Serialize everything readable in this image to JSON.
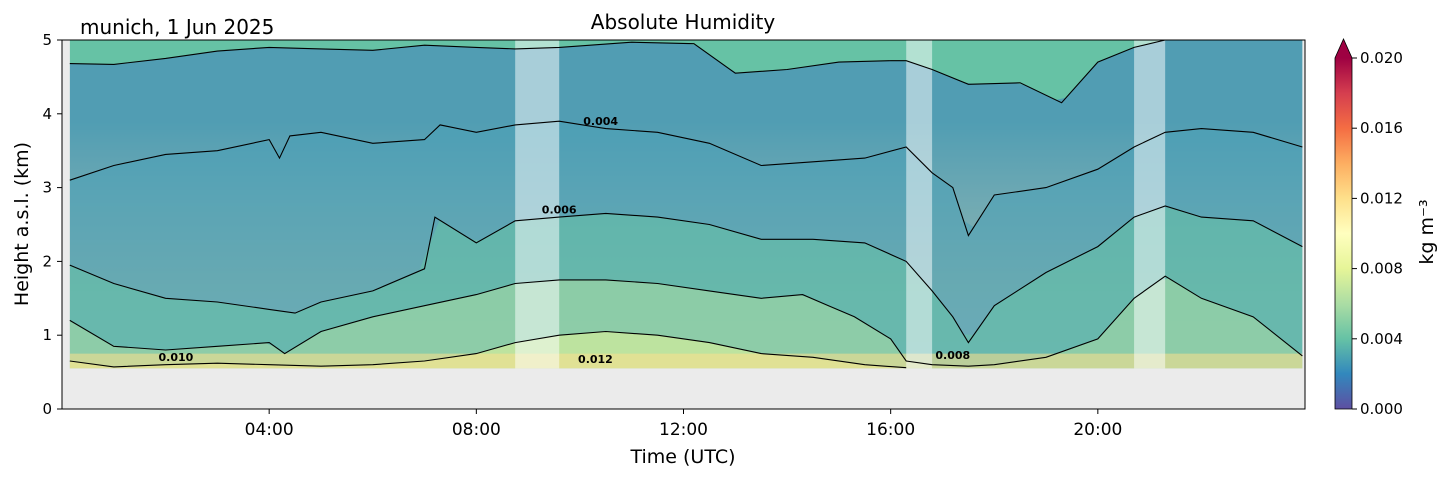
{
  "chart_data": {
    "type": "contour",
    "title": "Absolute Humidity",
    "subtitle": "munich, 1 Jun 2025",
    "xlabel": "Time (UTC)",
    "ylabel": "Height a.s.l. (km)",
    "x_ticks": [
      "04:00",
      "08:00",
      "12:00",
      "16:00",
      "20:00"
    ],
    "x_tick_hours": [
      4,
      8,
      12,
      16,
      20
    ],
    "xlim_hours": [
      0,
      24
    ],
    "y_ticks": [
      "0",
      "1",
      "2",
      "3",
      "4",
      "5"
    ],
    "ylim": [
      0,
      5
    ],
    "data_start_hours": 0.15,
    "data_end_hours": 23.95,
    "ground_height_km": 0.55,
    "colorbar": {
      "label": "kg m⁻³",
      "ticks": [
        "0.000",
        "0.004",
        "0.008",
        "0.012",
        "0.016",
        "0.020"
      ],
      "range": [
        0,
        0.02
      ],
      "extend": "max",
      "colormap": "Spectral_r",
      "stops": [
        "#5e4fa2",
        "#3288bd",
        "#66c2a5",
        "#abdda4",
        "#e6f598",
        "#ffffbf",
        "#fee08b",
        "#fdae61",
        "#f46d43",
        "#d53e4f",
        "#9e0142"
      ]
    },
    "gaps_hours": [
      [
        8.75,
        9.6
      ],
      [
        16.3,
        16.8
      ],
      [
        20.7,
        21.3
      ]
    ],
    "contour_levels": [
      0.002,
      0.004,
      0.006,
      0.008,
      0.01,
      0.012
    ],
    "contour_labels": [
      {
        "text": "0.004",
        "x_hours": 10.4,
        "height_km": 3.85
      },
      {
        "text": "0.006",
        "x_hours": 9.6,
        "height_km": 2.65
      },
      {
        "text": "0.010",
        "x_hours": 2.2,
        "height_km": 0.65
      },
      {
        "text": "0.012",
        "x_hours": 10.3,
        "height_km": 0.62
      },
      {
        "text": "0.008",
        "x_hours": 17.2,
        "height_km": 0.68
      }
    ],
    "contour_lines": [
      {
        "level": 0.002,
        "x_hours": [
          0.15,
          1,
          2,
          3,
          4,
          5,
          6,
          7,
          8,
          8.75,
          9.6,
          11,
          12.2,
          13,
          14,
          15,
          16,
          16.3,
          16.8,
          17.5,
          18.5,
          19.3,
          20,
          20.7,
          21.3,
          22,
          23,
          23.95
        ],
        "height_km": [
          4.68,
          4.67,
          4.75,
          4.85,
          4.9,
          4.88,
          4.86,
          4.93,
          4.9,
          4.88,
          4.9,
          4.97,
          4.95,
          4.55,
          4.6,
          4.7,
          4.72,
          4.72,
          4.6,
          4.4,
          4.42,
          4.15,
          4.7,
          4.9,
          5.0,
          5.0,
          5.0,
          5.0
        ]
      },
      {
        "level": 0.004,
        "x_hours": [
          0.15,
          1,
          2,
          3,
          4,
          4.2,
          4.4,
          5,
          6,
          7,
          7.3,
          8,
          8.75,
          9.6,
          10.5,
          11.5,
          12.5,
          13.5,
          14.5,
          15.5,
          16.3,
          16.8,
          17.2,
          17.5,
          18,
          19,
          20,
          20.7,
          21.3,
          22,
          23,
          23.95
        ],
        "height_km": [
          3.1,
          3.3,
          3.45,
          3.5,
          3.65,
          3.4,
          3.7,
          3.75,
          3.6,
          3.65,
          3.85,
          3.75,
          3.85,
          3.9,
          3.8,
          3.75,
          3.6,
          3.3,
          3.35,
          3.4,
          3.55,
          3.2,
          3.0,
          2.35,
          2.9,
          3.0,
          3.25,
          3.55,
          3.75,
          3.8,
          3.75,
          3.55
        ]
      },
      {
        "level": 0.006,
        "x_hours": [
          0.15,
          1,
          2,
          3,
          4,
          4.5,
          5,
          6,
          7,
          7.2,
          8,
          8.75,
          9.6,
          10.5,
          11.5,
          12.5,
          13.5,
          14.5,
          15.5,
          16.3,
          16.8,
          17.2,
          17.5,
          18,
          19,
          20,
          20.7,
          21.3,
          22,
          23,
          23.95
        ],
        "height_km": [
          1.95,
          1.7,
          1.5,
          1.45,
          1.35,
          1.3,
          1.45,
          1.6,
          1.9,
          2.6,
          2.25,
          2.55,
          2.6,
          2.65,
          2.6,
          2.5,
          2.3,
          2.3,
          2.25,
          2.0,
          1.6,
          1.25,
          0.9,
          1.4,
          1.85,
          2.2,
          2.6,
          2.75,
          2.6,
          2.55,
          2.2
        ]
      },
      {
        "level": 0.008,
        "x_hours": [
          0.15,
          1,
          2,
          3,
          4,
          4.3,
          5,
          6,
          7,
          8,
          8.75,
          9.6,
          10.5,
          11.5,
          12.5,
          13.5,
          14.3,
          14.8,
          15.3,
          16,
          16.3,
          16.8,
          17.5,
          18,
          19,
          20,
          20.7,
          21.3,
          22,
          23,
          23.95
        ],
        "height_km": [
          1.2,
          0.85,
          0.8,
          0.85,
          0.9,
          0.75,
          1.05,
          1.25,
          1.4,
          1.55,
          1.7,
          1.75,
          1.75,
          1.7,
          1.6,
          1.5,
          1.55,
          1.4,
          1.25,
          0.95,
          0.65,
          0.6,
          0.58,
          0.6,
          0.7,
          0.95,
          1.5,
          1.8,
          1.5,
          1.25,
          0.72
        ]
      },
      {
        "level": 0.01,
        "x_hours": [
          0.15,
          1,
          2,
          3,
          4,
          5,
          6,
          7,
          8,
          8.75,
          9.6,
          10.5,
          11.5,
          12.5,
          13.5,
          14.5,
          15.5,
          16.3
        ],
        "height_km": [
          0.65,
          0.57,
          0.6,
          0.62,
          0.6,
          0.58,
          0.6,
          0.65,
          0.75,
          0.9,
          1.0,
          1.05,
          1.0,
          0.9,
          0.75,
          0.7,
          0.6,
          0.56
        ]
      }
    ]
  }
}
